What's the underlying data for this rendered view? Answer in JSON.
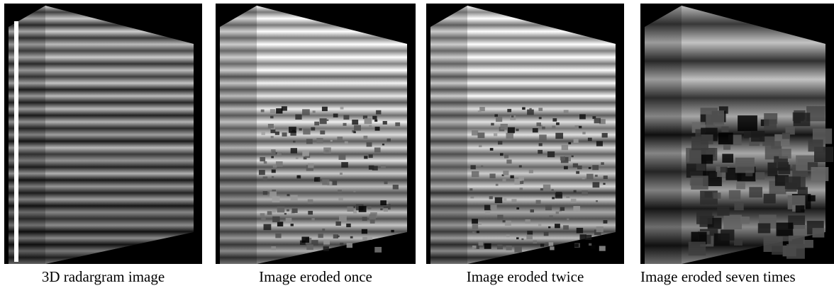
{
  "figure": {
    "panels": [
      {
        "caption": "3D radargram image"
      },
      {
        "caption": "Image eroded once"
      },
      {
        "caption": "Image eroded twice"
      },
      {
        "caption": "Image eroded seven times"
      }
    ]
  }
}
